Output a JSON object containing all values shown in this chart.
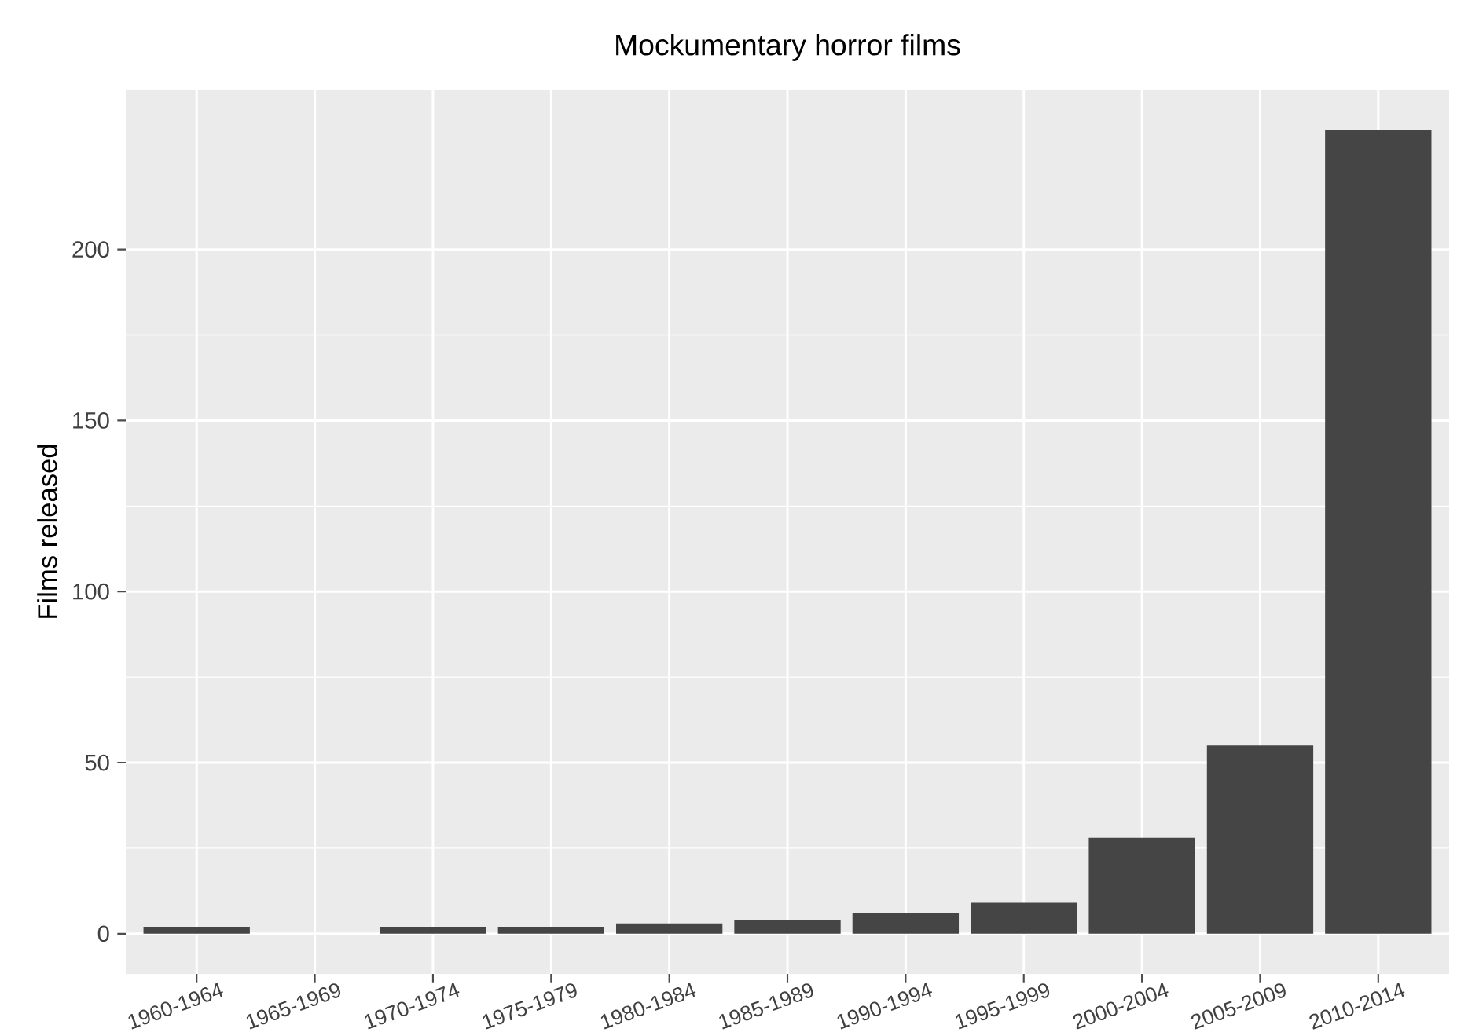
{
  "chart_data": {
    "type": "bar",
    "title": "Mockumentary horror films",
    "ylabel": "Films released",
    "categories": [
      "1960-1964",
      "1965-1969",
      "1970-1974",
      "1975-1979",
      "1980-1984",
      "1985-1989",
      "1990-1994",
      "1995-1999",
      "2000-2004",
      "2005-2009",
      "2010-2014"
    ],
    "values": [
      2,
      0,
      2,
      2,
      3,
      4,
      6,
      9,
      28,
      55,
      235
    ],
    "color": "#454545",
    "ylim": [
      -11.75,
      246.75
    ],
    "yticks": [
      0,
      50,
      100,
      150,
      200
    ],
    "grid": true
  }
}
